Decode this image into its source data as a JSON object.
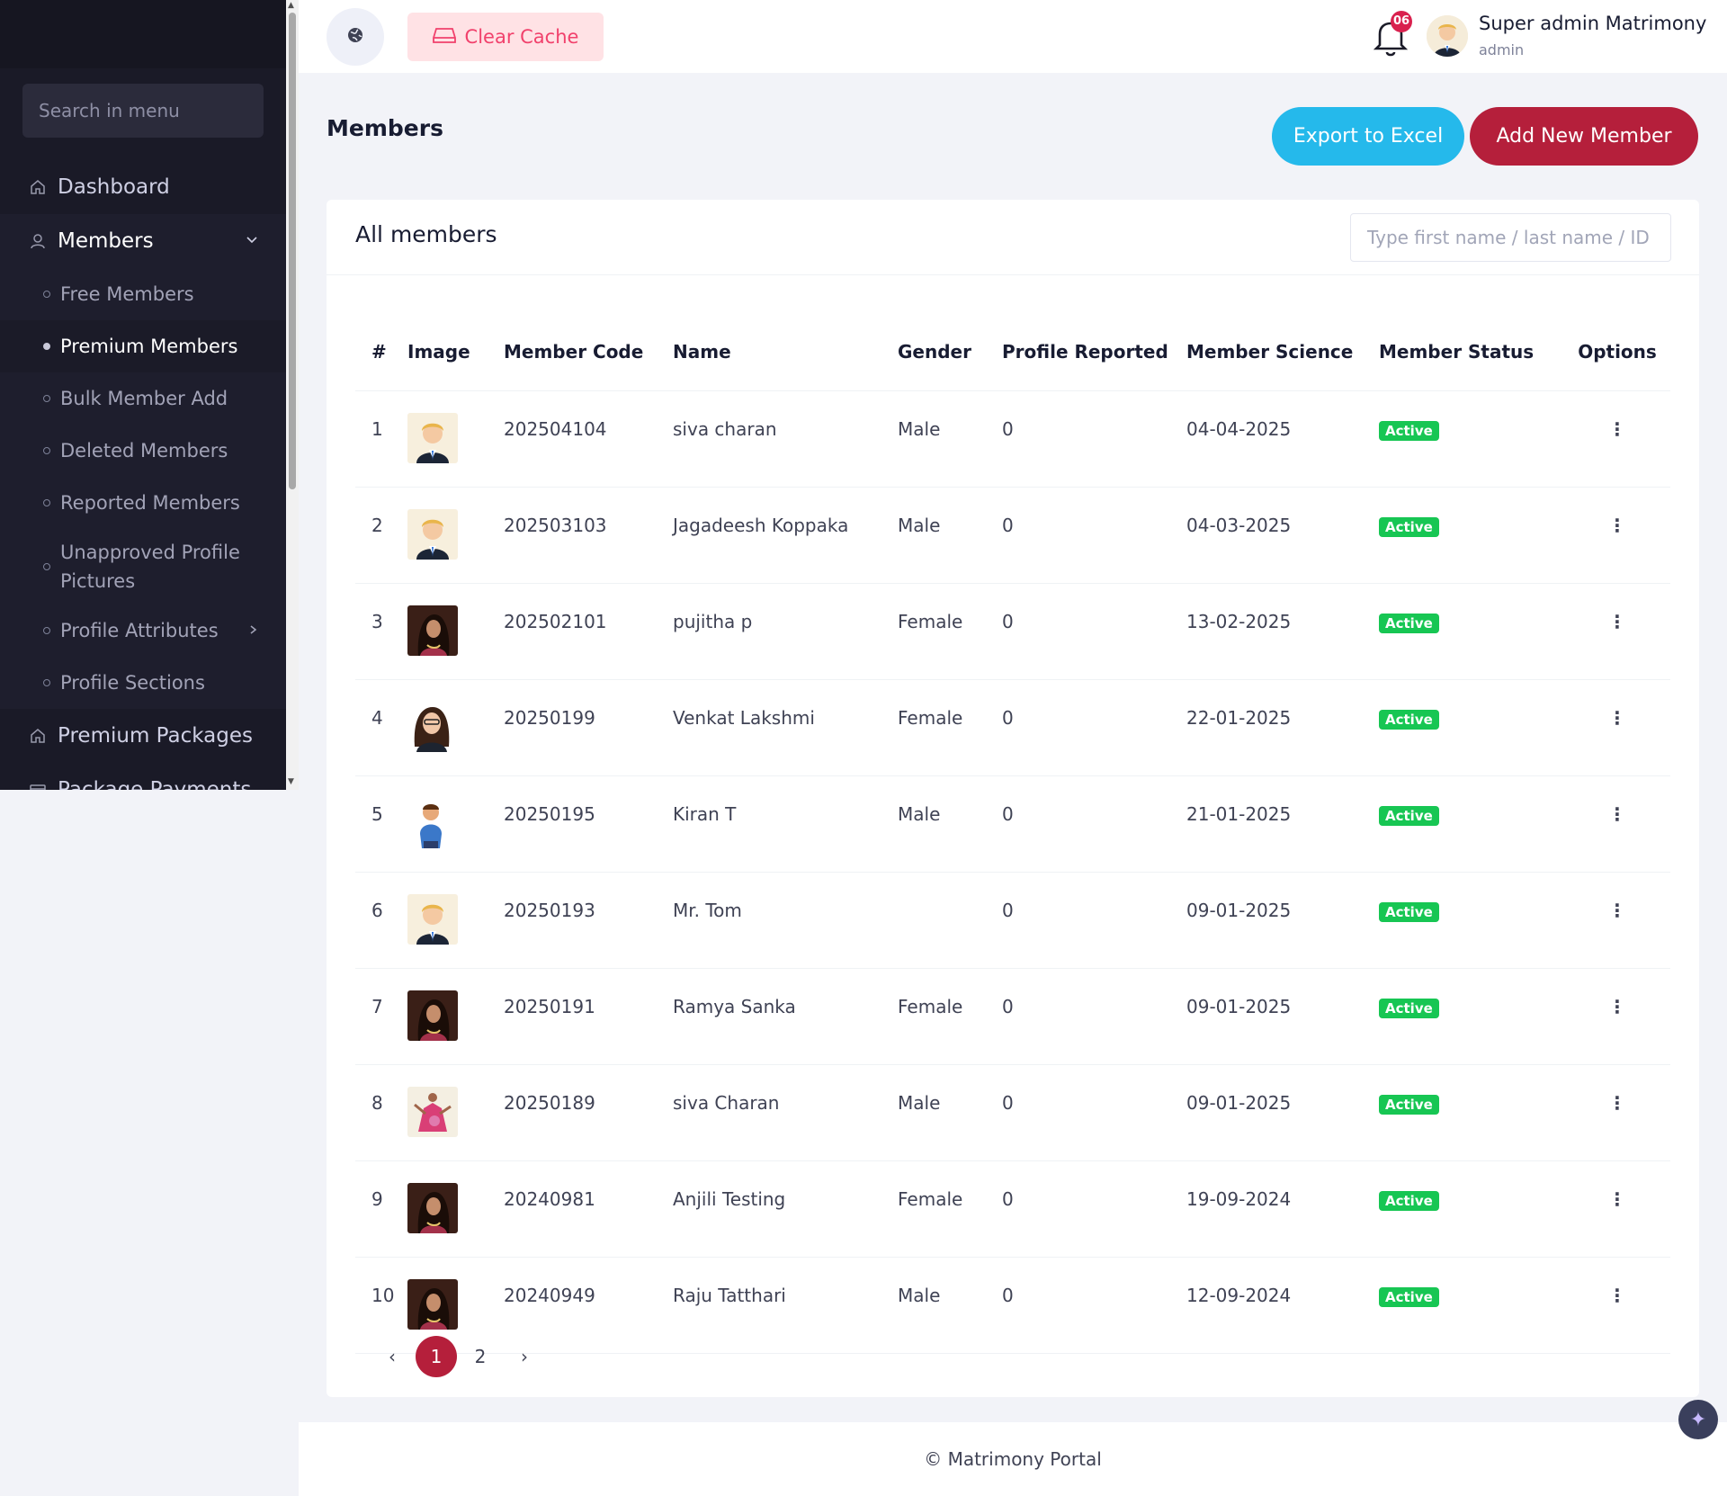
{
  "sidebar": {
    "search_placeholder": "Search in menu",
    "items": [
      {
        "label": "Dashboard",
        "icon": "home-icon"
      },
      {
        "label": "Members",
        "icon": "user-icon"
      },
      {
        "label": "Premium Packages",
        "icon": "home-icon"
      },
      {
        "label": "Package Payments",
        "icon": "card-icon"
      }
    ],
    "submenu": [
      {
        "label": "Free Members"
      },
      {
        "label": "Premium Members"
      },
      {
        "label": "Bulk Member Add"
      },
      {
        "label": "Deleted Members"
      },
      {
        "label": "Reported Members"
      },
      {
        "label": "Unapproved Profile Pictures"
      },
      {
        "label": "Profile Attributes"
      },
      {
        "label": "Profile Sections"
      }
    ]
  },
  "topbar": {
    "clear_cache": "Clear Cache",
    "notification_count": "06",
    "user_name": "Super admin Matrimony",
    "user_role": "admin"
  },
  "page": {
    "title": "Members",
    "export_label": "Export to Excel",
    "add_label": "Add New Member"
  },
  "card": {
    "title": "All members",
    "search_placeholder": "Type first name / last name / ID"
  },
  "table": {
    "columns": [
      "#",
      "Image",
      "Member Code",
      "Name",
      "Gender",
      "Profile Reported",
      "Member Science",
      "Member Status",
      "Options"
    ],
    "rows": [
      {
        "num": "1",
        "avatar": "male-cartoon",
        "code": "202504104",
        "name": "siva charan",
        "gender": "Male",
        "reported": "0",
        "since": "04-04-2025",
        "status": "Active",
        "options": "⋮"
      },
      {
        "num": "2",
        "avatar": "male-cartoon",
        "code": "202503103",
        "name": "Jagadeesh Koppaka",
        "gender": "Male",
        "reported": "0",
        "since": "04-03-2025",
        "status": "Active",
        "options": "⋮"
      },
      {
        "num": "3",
        "avatar": "female-photo",
        "code": "202502101",
        "name": "pujitha p",
        "gender": "Female",
        "reported": "0",
        "since": "13-02-2025",
        "status": "Active",
        "options": "⋮"
      },
      {
        "num": "4",
        "avatar": "female-cartoon",
        "code": "20250199",
        "name": "Venkat Lakshmi",
        "gender": "Female",
        "reported": "0",
        "since": "22-01-2025",
        "status": "Active",
        "options": "⋮"
      },
      {
        "num": "5",
        "avatar": "male-3d",
        "code": "20250195",
        "name": "Kiran T",
        "gender": "Male",
        "reported": "0",
        "since": "21-01-2025",
        "status": "Active",
        "options": "⋮"
      },
      {
        "num": "6",
        "avatar": "male-cartoon",
        "code": "20250193",
        "name": "Mr. Tom",
        "gender": "",
        "reported": "0",
        "since": "09-01-2025",
        "status": "Active",
        "options": "⋮"
      },
      {
        "num": "7",
        "avatar": "female-photo",
        "code": "20250191",
        "name": "Ramya Sanka",
        "gender": "Female",
        "reported": "0",
        "since": "09-01-2025",
        "status": "Active",
        "options": "⋮"
      },
      {
        "num": "8",
        "avatar": "dancer-photo",
        "code": "20250189",
        "name": "siva Charan",
        "gender": "Male",
        "reported": "0",
        "since": "09-01-2025",
        "status": "Active",
        "options": "⋮"
      },
      {
        "num": "9",
        "avatar": "female-photo",
        "code": "20240981",
        "name": "Anjili Testing",
        "gender": "Female",
        "reported": "0",
        "since": "19-09-2024",
        "status": "Active",
        "options": "⋮"
      },
      {
        "num": "10",
        "avatar": "female-photo",
        "code": "20240949",
        "name": "Raju Tatthari",
        "gender": "Male",
        "reported": "0",
        "since": "12-09-2024",
        "status": "Active",
        "options": "⋮"
      }
    ]
  },
  "pagination": {
    "prev": "‹",
    "pages": [
      "1",
      "2"
    ],
    "next": "›",
    "current": "1"
  },
  "footer": {
    "text": "© Matrimony Portal"
  },
  "colors": {
    "sidebar_bg": "#1a1a27",
    "brand": "#b51f3b",
    "export": "#25b9eb",
    "active_badge": "#17c653"
  }
}
